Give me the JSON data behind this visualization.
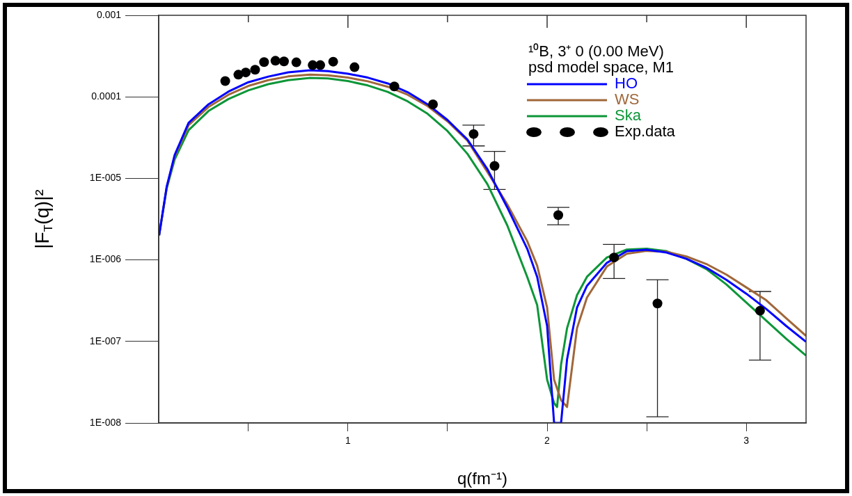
{
  "chart_data": {
    "type": "line",
    "xlabel": "q(fm⁻¹)",
    "ylabel": "|F$_{T}$(q)|²",
    "legend_title": "¹⁰B, 3⁺ 0 (0.00 MeV)\npsd model space, M1",
    "legend": "top right",
    "log": "y",
    "grid": false,
    "xlim": [
      0.05,
      3.3
    ],
    "xticks": [
      {
        "value": 0.5,
        "label": null
      },
      1,
      {
        "value": 1.5,
        "label": null
      },
      2,
      {
        "value": 2.5,
        "label": null
      },
      3
    ],
    "ylim": [
      1e-08,
      0.001
    ],
    "yticks": [
      {
        "value": 1e-08,
        "label": "1E-008"
      },
      {
        "value": 1e-07,
        "label": "1E-007"
      },
      {
        "value": 1e-06,
        "label": "1E-006"
      },
      {
        "value": 1e-05,
        "label": "1E-005"
      },
      {
        "value": 0.0001,
        "label": "0.0001"
      },
      {
        "value": 0.001,
        "label": "0.001"
      }
    ],
    "series": [
      {
        "name": "HO",
        "type": "line",
        "marker": "none",
        "line_style": "solid",
        "color": "#0000ff",
        "x": [
          0.052,
          0.09,
          0.13,
          0.2,
          0.3,
          0.4,
          0.5,
          0.6,
          0.7,
          0.81,
          0.9,
          1.0,
          1.1,
          1.2,
          1.3,
          1.4,
          1.5,
          1.6,
          1.7,
          1.8,
          1.9,
          1.95,
          2.0,
          2.035,
          2.07,
          2.1,
          2.15,
          2.2,
          2.3,
          2.4,
          2.5,
          2.6,
          2.7,
          2.8,
          2.9,
          3.0,
          3.1,
          3.2,
          3.3
        ],
        "values": [
          2e-06,
          7.9e-06,
          1.93e-05,
          4.8e-05,
          8.1e-05,
          0.000116,
          0.000151,
          0.000177,
          0.0002,
          0.000212,
          0.000207,
          0.000192,
          0.000172,
          0.000146,
          0.000114,
          8.1e-05,
          5.2e-05,
          3e-05,
          1.3e-05,
          4.4e-06,
          1.37e-06,
          6.2e-07,
          1.55e-07,
          1e-08,
          1e-08,
          6e-08,
          2.6e-07,
          4.8e-07,
          9.2e-07,
          1.28e-06,
          1.33e-06,
          1.23e-06,
          1.03e-06,
          8e-07,
          5.7e-07,
          3.85e-07,
          2.5e-07,
          1.55e-07,
          9.9e-08
        ]
      },
      {
        "name": "WS",
        "type": "line",
        "marker": "none",
        "line_style": "solid",
        "color": "#a0673a",
        "x": [
          0.052,
          0.09,
          0.13,
          0.2,
          0.3,
          0.4,
          0.5,
          0.6,
          0.7,
          0.81,
          0.9,
          1.0,
          1.1,
          1.2,
          1.3,
          1.4,
          1.5,
          1.6,
          1.7,
          1.8,
          1.9,
          1.95,
          2.0,
          2.035,
          2.07,
          2.1,
          2.15,
          2.2,
          2.3,
          2.4,
          2.5,
          2.6,
          2.7,
          2.8,
          2.9,
          3.0,
          3.1,
          3.2,
          3.3
        ],
        "values": [
          2e-06,
          7.7e-06,
          1.85e-05,
          4.5e-05,
          7.5e-05,
          0.000106,
          0.000136,
          0.00016,
          0.000178,
          0.000187,
          0.000184,
          0.000172,
          0.000155,
          0.000133,
          0.000106,
          7.7e-05,
          5e-05,
          2.9e-05,
          1.2e-05,
          4.8e-06,
          1.7e-06,
          8.5e-07,
          2.6e-07,
          3.4e-08,
          1.9e-08,
          1.57e-08,
          1.45e-07,
          3.45e-07,
          8.3e-07,
          1.19e-06,
          1.29e-06,
          1.26e-06,
          1.1e-06,
          8.9e-07,
          6.6e-07,
          4.6e-07,
          3.2e-07,
          1.93e-07,
          1.17e-07
        ]
      },
      {
        "name": "Ska",
        "type": "line",
        "marker": "none",
        "line_style": "solid",
        "color": "#0c9638",
        "x": [
          0.052,
          0.09,
          0.13,
          0.2,
          0.3,
          0.4,
          0.5,
          0.6,
          0.7,
          0.81,
          0.9,
          1.0,
          1.1,
          1.2,
          1.3,
          1.4,
          1.5,
          1.6,
          1.7,
          1.8,
          1.9,
          1.95,
          2.0,
          2.035,
          2.05,
          2.07,
          2.1,
          2.15,
          2.2,
          2.3,
          2.4,
          2.5,
          2.6,
          2.7,
          2.8,
          2.9,
          3.0,
          3.1,
          3.2,
          3.3
        ],
        "values": [
          2e-06,
          7.5e-06,
          1.7e-05,
          3.9e-05,
          6.7e-05,
          9.4e-05,
          0.00012,
          0.000143,
          0.00016,
          0.000171,
          0.000168,
          0.000156,
          0.000138,
          0.000115,
          8.8e-05,
          6.2e-05,
          3.8e-05,
          2e-05,
          8.5e-06,
          2.65e-06,
          6.2e-07,
          2.8e-07,
          3.4e-08,
          1.75e-08,
          1.57e-08,
          5.2e-08,
          1.45e-07,
          3.7e-07,
          6.2e-07,
          1.07e-06,
          1.34e-06,
          1.37e-06,
          1.28e-06,
          1.03e-06,
          7.7e-07,
          5e-07,
          3e-07,
          1.8e-07,
          1.08e-07,
          6.7e-08
        ]
      },
      {
        "name": "Exp.data",
        "type": "scatter",
        "marker": "circle",
        "color": "#000000",
        "x": [
          0.384,
          0.45,
          0.487,
          0.534,
          0.579,
          0.636,
          0.679,
          0.741,
          0.823,
          0.861,
          0.926,
          1.033,
          1.233,
          1.427,
          1.631,
          1.736,
          2.056,
          2.336,
          2.554,
          3.069
        ],
        "values": [
          0.000156,
          0.000187,
          0.000199,
          0.000215,
          0.000267,
          0.000277,
          0.000272,
          0.000265,
          0.000245,
          0.000245,
          0.00027,
          0.000231,
          0.000134,
          8.1e-05,
          3.5e-05,
          1.42e-05,
          3.54e-06,
          1.07e-06,
          2.92e-07,
          2.38e-07
        ],
        "errors": [
          null,
          null,
          null,
          null,
          null,
          null,
          null,
          null,
          null,
          null,
          null,
          null,
          null,
          null,
          [
            2.5e-05,
            4.5e-05
          ],
          [
            7.3e-06,
            2.14e-05
          ],
          [
            2.7e-06,
            4.4e-06
          ],
          [
            5.9e-07,
            1.55e-06
          ],
          [
            1.19e-08,
            5.7e-07
          ],
          [
            5.9e-08,
            4.1e-07
          ]
        ]
      }
    ]
  }
}
